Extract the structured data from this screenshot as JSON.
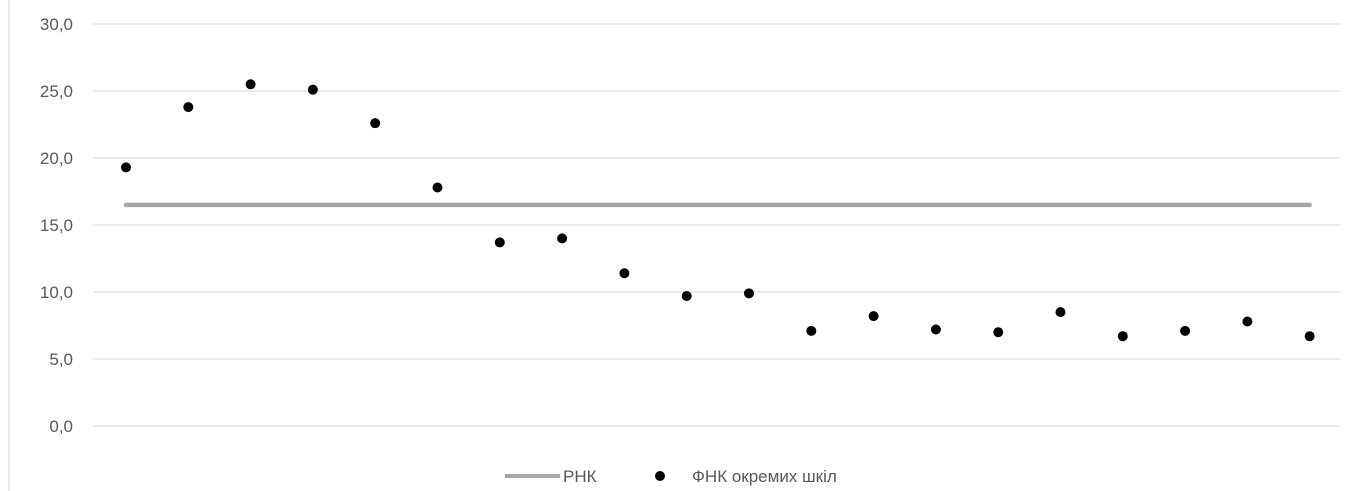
{
  "chart_data": {
    "type": "scatter",
    "title": "",
    "xlabel": "",
    "ylabel": "",
    "ylim": [
      0,
      30
    ],
    "y_ticks": [
      "0,0",
      "5,0",
      "10,0",
      "15,0",
      "20,0",
      "25,0",
      "30,0"
    ],
    "grid": true,
    "legend_position": "bottom",
    "x": [
      1,
      2,
      3,
      4,
      5,
      6,
      7,
      8,
      9,
      10,
      11,
      12,
      13,
      14,
      15,
      16,
      17,
      18,
      19,
      20
    ],
    "series": [
      {
        "name": "РНК",
        "kind": "line",
        "color": "#a6a6a6",
        "values": [
          16.5,
          16.5,
          16.5,
          16.5,
          16.5,
          16.5,
          16.5,
          16.5,
          16.5,
          16.5,
          16.5,
          16.5,
          16.5,
          16.5,
          16.5,
          16.5,
          16.5,
          16.5,
          16.5,
          16.5
        ]
      },
      {
        "name": "ФНК окремих шкіл",
        "kind": "markers",
        "color": "#000000",
        "values": [
          19.3,
          23.8,
          25.5,
          25.1,
          22.6,
          17.8,
          13.7,
          14.0,
          11.4,
          9.7,
          9.9,
          7.1,
          8.2,
          7.2,
          7.0,
          8.5,
          6.7,
          7.1,
          7.8,
          6.7
        ]
      }
    ]
  }
}
